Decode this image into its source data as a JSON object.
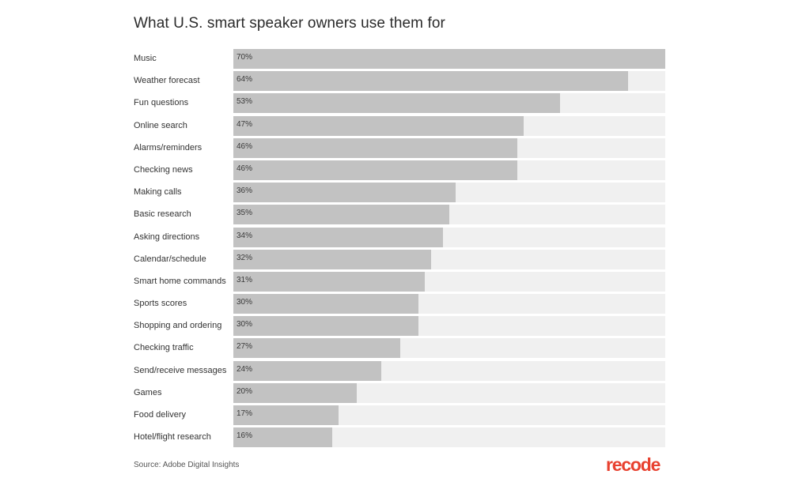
{
  "chart_data": {
    "type": "bar",
    "orientation": "horizontal",
    "title": "What U.S. smart speaker owners use them for",
    "categories": [
      "Music",
      "Weather forecast",
      "Fun questions",
      "Online search",
      "Alarms/reminders",
      "Checking news",
      "Making calls",
      "Basic research",
      "Asking directions",
      "Calendar/schedule",
      "Smart home commands",
      "Sports scores",
      "Shopping and ordering",
      "Checking traffic",
      "Send/receive messages",
      "Games",
      "Food delivery",
      "Hotel/flight research"
    ],
    "values": [
      70,
      64,
      53,
      47,
      46,
      46,
      36,
      35,
      34,
      32,
      31,
      30,
      30,
      27,
      24,
      20,
      17,
      16
    ],
    "value_labels": [
      "70%",
      "64%",
      "53%",
      "47%",
      "46%",
      "46%",
      "36%",
      "35%",
      "34%",
      "32%",
      "31%",
      "30%",
      "30%",
      "27%",
      "24%",
      "20%",
      "17%",
      "16%"
    ],
    "unit": "%",
    "xlim": [
      0,
      70
    ],
    "grid": false,
    "legend": "none",
    "colors": {
      "bar": "#c2c2c2",
      "track": "#f0f0f0"
    }
  },
  "footer": {
    "source": "Source: Adobe Digital Insights",
    "logo_text": "recode",
    "logo_color": "#e8412f"
  }
}
